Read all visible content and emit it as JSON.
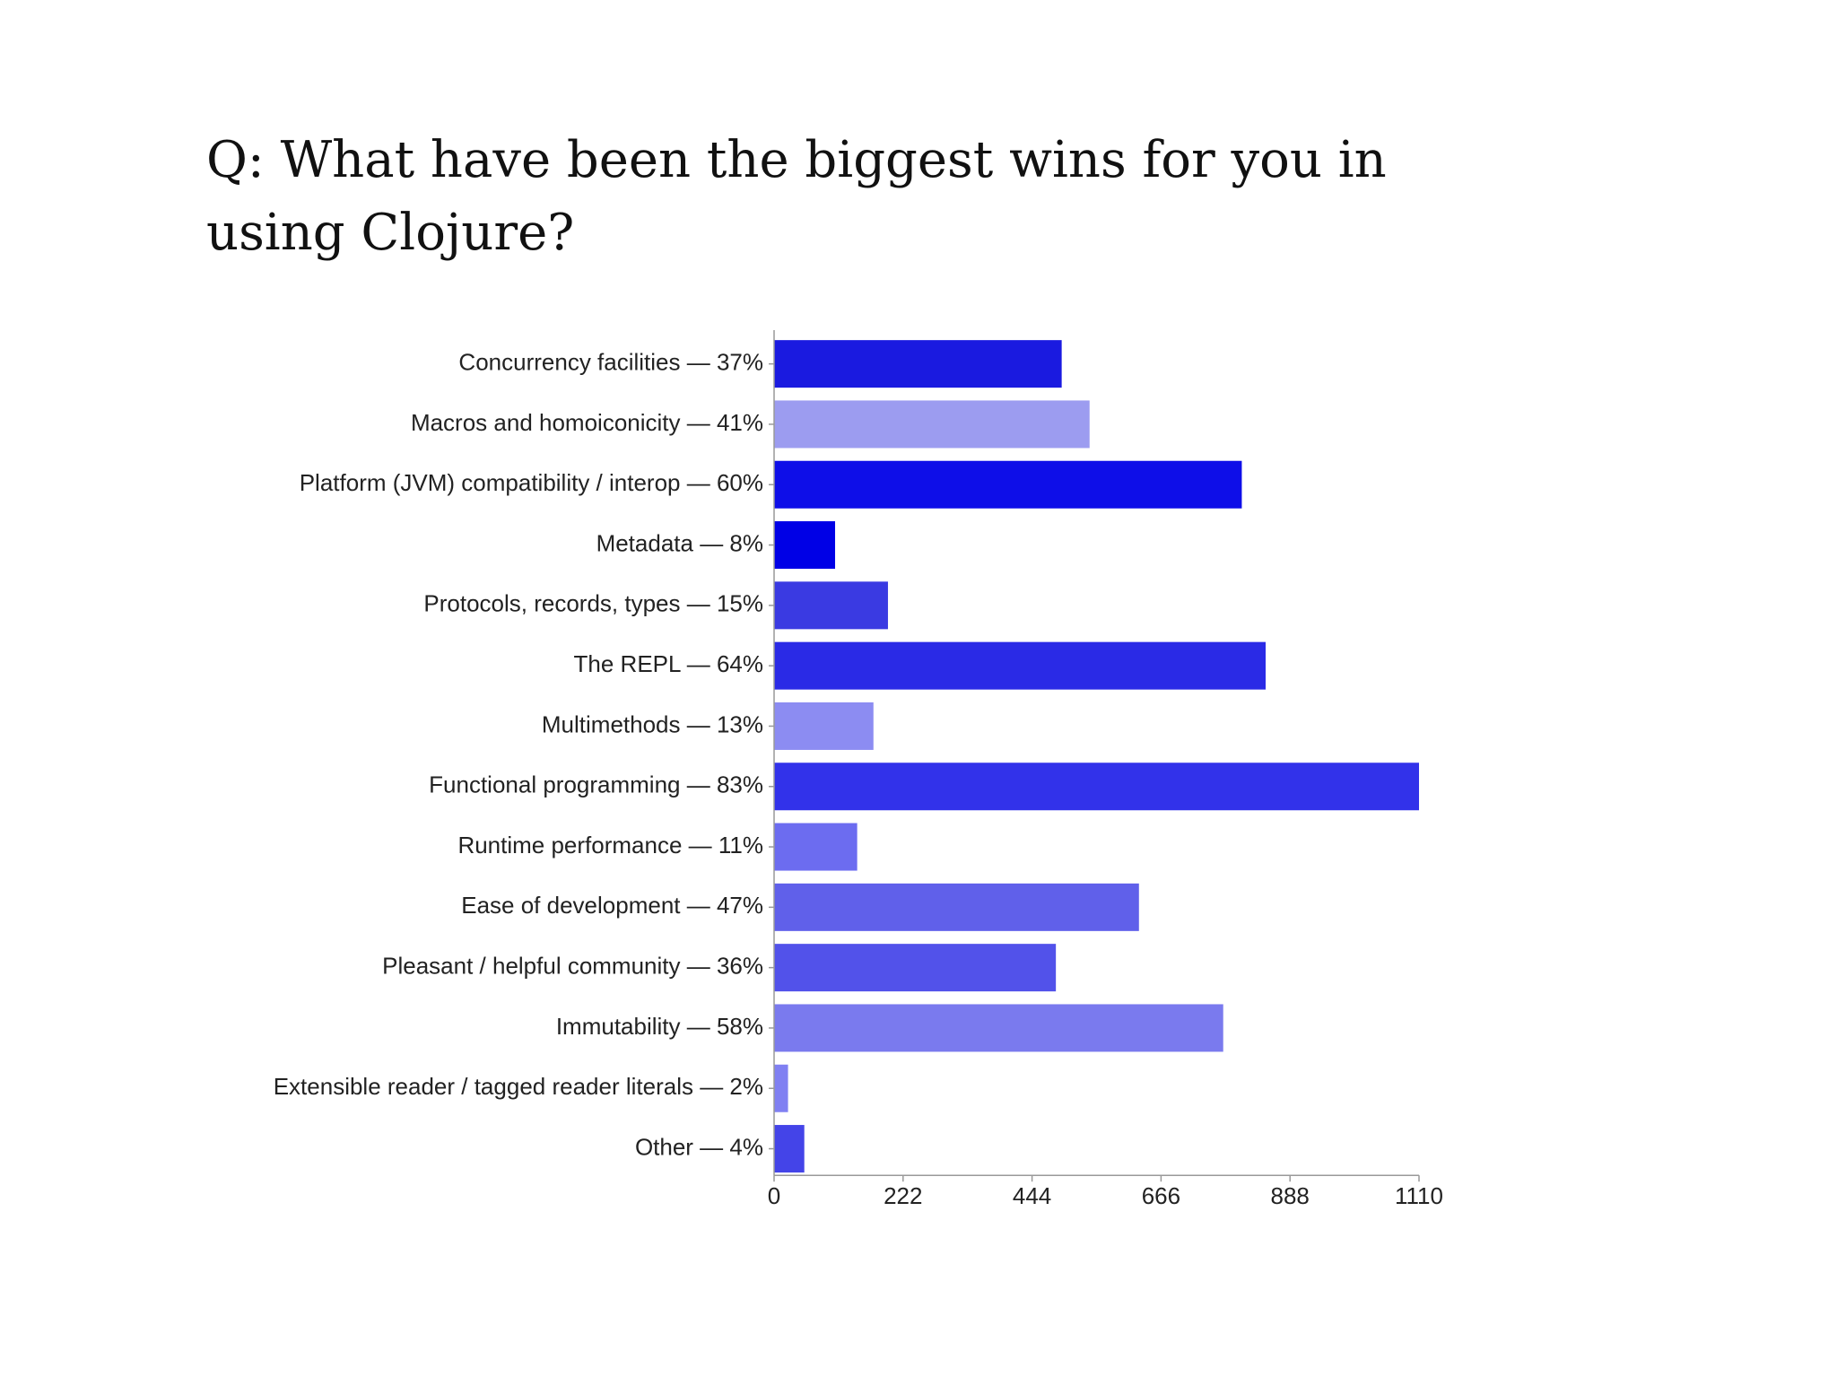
{
  "chart_data": {
    "type": "bar",
    "orientation": "horizontal",
    "title": "Q: What have been the biggest wins for you in using Clojure?",
    "categories": [
      "Concurrency facilities — 37%",
      "Macros and homoiconicity — 41%",
      "Platform (JVM) compatibility / interop — 60%",
      "Metadata — 8%",
      "Protocols, records, types — 15%",
      "The REPL — 64%",
      "Multimethods — 13%",
      "Functional programming — 83%",
      "Runtime performance — 11%",
      "Ease of development — 47%",
      "Pleasant / helpful community — 36%",
      "Immutability — 58%",
      "Extensible reader / tagged reader literals — 2%",
      "Other — 4%"
    ],
    "values": [
      495,
      543,
      805,
      105,
      196,
      846,
      171,
      1110,
      143,
      628,
      485,
      773,
      24,
      52
    ],
    "colors": [
      "#1a1ae0",
      "#9c9cf0",
      "#0e0ee8",
      "#0000e6",
      "#3a3ae2",
      "#2a2ae6",
      "#8c8cf2",
      "#3232ea",
      "#6c6cf0",
      "#6060ea",
      "#5252ea",
      "#7a7aee",
      "#8080f2",
      "#4444e8"
    ],
    "xlim": [
      0,
      1110
    ],
    "xticks": [
      "0",
      "222",
      "444",
      "666",
      "888",
      "1110"
    ],
    "grid": false,
    "legend": "none"
  }
}
